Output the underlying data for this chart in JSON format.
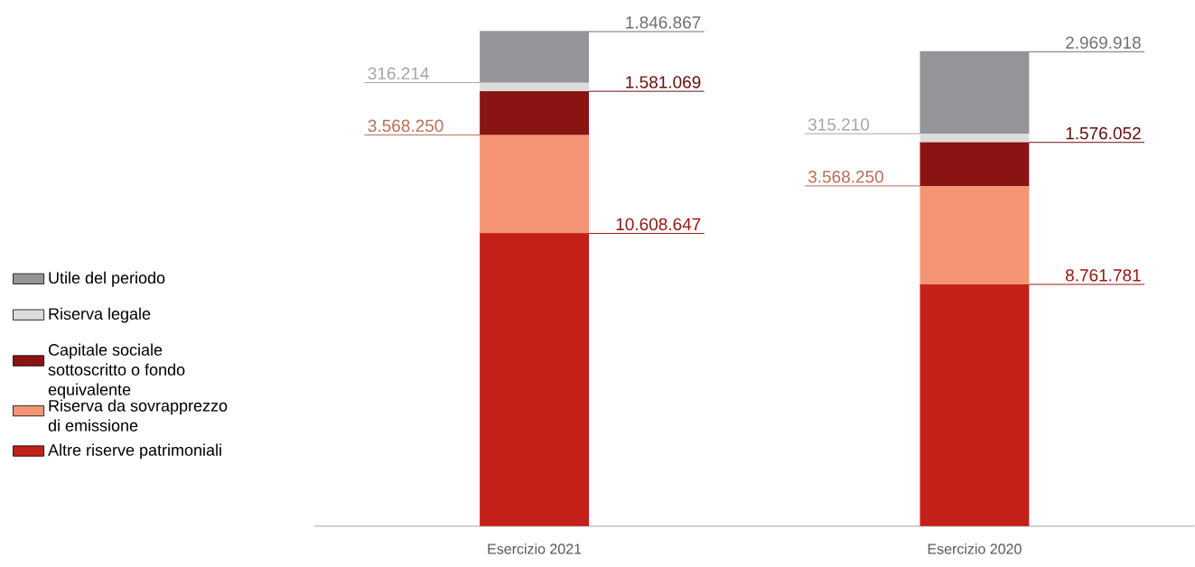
{
  "chart_data": {
    "type": "bar",
    "stacked": true,
    "legend": "left",
    "categories": [
      "Esercizio 2021",
      "Esercizio 2020"
    ],
    "series": [
      {
        "name": "Altre riserve patrimoniali",
        "color": "#c4201a",
        "values": [
          10608647,
          8761781
        ],
        "value_labels": [
          "10.608.647",
          "8.761.781"
        ]
      },
      {
        "name": "Riserva da sovrapprezzo di emissione",
        "color": "#f49474",
        "values": [
          3568250,
          3568250
        ],
        "value_labels": [
          "3.568.250",
          "3.568.250"
        ]
      },
      {
        "name": "Capitale sociale sottoscritto o fondo equivalente",
        "color": "#8a1414",
        "values": [
          1581069,
          1576052
        ],
        "value_labels": [
          "1.581.069",
          "1.576.052"
        ]
      },
      {
        "name": "Riserva legale",
        "color": "#dcdcdc",
        "values": [
          316214,
          315210
        ],
        "value_labels": [
          "316.214",
          "315.210"
        ]
      },
      {
        "name": "Utile del periodo",
        "color": "#939598",
        "values": [
          1846867,
          2969918
        ],
        "value_labels": [
          "1.846.867",
          "2.969.918"
        ]
      }
    ]
  }
}
